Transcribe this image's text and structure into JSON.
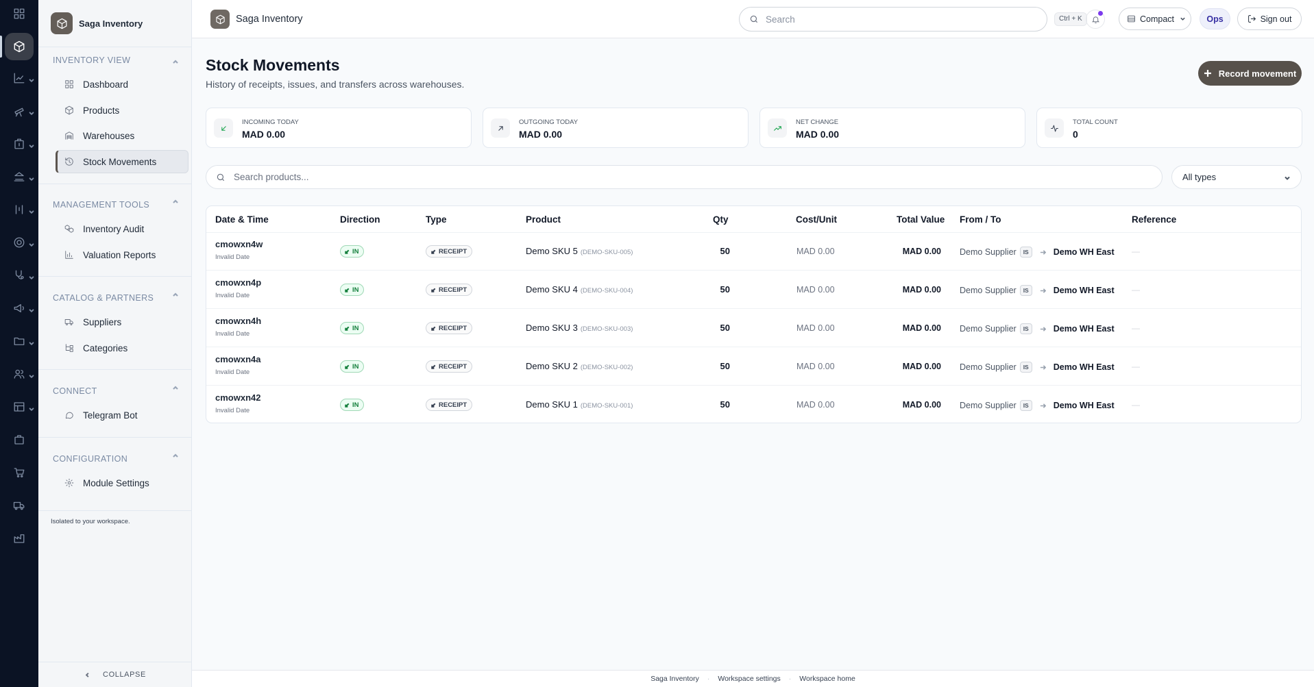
{
  "app": {
    "name": "Saga Inventory"
  },
  "header": {
    "title": "Saga Inventory",
    "search_placeholder": "Search",
    "shortcut": "Ctrl + K",
    "density": "Compact",
    "workspace_badge": "Ops",
    "sign_out": "Sign out",
    "notification_dot_color": "#7c3aed"
  },
  "rail": {
    "icons": [
      "grid-icon",
      "box-icon",
      "chart-line-icon",
      "telescope-icon",
      "building-icon",
      "landmark-icon",
      "scale-icon",
      "target-icon",
      "stethoscope-icon",
      "megaphone-icon",
      "folder-icon",
      "users-icon",
      "table-icon",
      "briefcase-icon",
      "cart-icon",
      "truck-icon",
      "factory-icon"
    ]
  },
  "sidebar": {
    "brand": "Saga Inventory",
    "sections": [
      {
        "title": "Inventory View",
        "items": [
          {
            "label": "Dashboard",
            "icon": "layout-grid-icon"
          },
          {
            "label": "Products",
            "icon": "package-icon"
          },
          {
            "label": "Warehouses",
            "icon": "warehouse-icon"
          },
          {
            "label": "Stock Movements",
            "icon": "history-icon",
            "active": true
          }
        ]
      },
      {
        "title": "Management Tools",
        "items": [
          {
            "label": "Inventory Audit",
            "icon": "boxes-icon"
          },
          {
            "label": "Valuation Reports",
            "icon": "bar-chart-icon"
          }
        ]
      },
      {
        "title": "Catalog & Partners",
        "items": [
          {
            "label": "Suppliers",
            "icon": "truck-icon"
          },
          {
            "label": "Categories",
            "icon": "tree-icon"
          }
        ]
      },
      {
        "title": "Connect",
        "items": [
          {
            "label": "Telegram Bot",
            "icon": "message-icon"
          }
        ]
      },
      {
        "title": "Configuration",
        "items": [
          {
            "label": "Module Settings",
            "icon": "settings-icon"
          }
        ]
      }
    ],
    "footer_note": "Isolated to your workspace.",
    "collapse_label": "COLLAPSE"
  },
  "main": {
    "title": "Stock Movements",
    "subtitle": "History of receipts, issues, and transfers across warehouses.",
    "record_button": "Record movement",
    "stats": [
      {
        "label": "Incoming today",
        "value": "MAD 0.00",
        "icon": "arrow-down-left-icon",
        "color": "#16a34a"
      },
      {
        "label": "Outgoing today",
        "value": "MAD 0.00",
        "icon": "arrow-up-right-icon",
        "color": "#374151"
      },
      {
        "label": "Net change",
        "value": "MAD 0.00",
        "icon": "trending-up-icon",
        "color": "#16a34a"
      },
      {
        "label": "Total count",
        "value": "0",
        "icon": "activity-icon",
        "color": "#374151"
      }
    ],
    "search_placeholder": "Search products...",
    "type_filter": "All types"
  },
  "table": {
    "columns": [
      "Date & Time",
      "Direction",
      "Type",
      "Product",
      "Qty",
      "Cost/Unit",
      "Total Value",
      "From / To",
      "Reference"
    ],
    "rows": [
      {
        "id": "cmowxn4w",
        "date": "Invalid Date",
        "direction": "IN",
        "type": "RECEIPT",
        "product": "Demo SKU 5",
        "sku": "(DEMO-SKU-005)",
        "qty": "50",
        "cost": "MAD 0.00",
        "total": "MAD 0.00",
        "from": "Demo Supplier",
        "from_badge": "IS",
        "to": "Demo WH East",
        "reference": "—"
      },
      {
        "id": "cmowxn4p",
        "date": "Invalid Date",
        "direction": "IN",
        "type": "RECEIPT",
        "product": "Demo SKU 4",
        "sku": "(DEMO-SKU-004)",
        "qty": "50",
        "cost": "MAD 0.00",
        "total": "MAD 0.00",
        "from": "Demo Supplier",
        "from_badge": "IS",
        "to": "Demo WH East",
        "reference": "—"
      },
      {
        "id": "cmowxn4h",
        "date": "Invalid Date",
        "direction": "IN",
        "type": "RECEIPT",
        "product": "Demo SKU 3",
        "sku": "(DEMO-SKU-003)",
        "qty": "50",
        "cost": "MAD 0.00",
        "total": "MAD 0.00",
        "from": "Demo Supplier",
        "from_badge": "IS",
        "to": "Demo WH East",
        "reference": "—"
      },
      {
        "id": "cmowxn4a",
        "date": "Invalid Date",
        "direction": "IN",
        "type": "RECEIPT",
        "product": "Demo SKU 2",
        "sku": "(DEMO-SKU-002)",
        "qty": "50",
        "cost": "MAD 0.00",
        "total": "MAD 0.00",
        "from": "Demo Supplier",
        "from_badge": "IS",
        "to": "Demo WH East",
        "reference": "—"
      },
      {
        "id": "cmowxn42",
        "date": "Invalid Date",
        "direction": "IN",
        "type": "RECEIPT",
        "product": "Demo SKU 1",
        "sku": "(DEMO-SKU-001)",
        "qty": "50",
        "cost": "MAD 0.00",
        "total": "MAD 0.00",
        "from": "Demo Supplier",
        "from_badge": "IS",
        "to": "Demo WH East",
        "reference": "—"
      }
    ]
  },
  "footer": {
    "links": [
      "Saga Inventory",
      "Workspace settings",
      "Workspace home"
    ]
  }
}
